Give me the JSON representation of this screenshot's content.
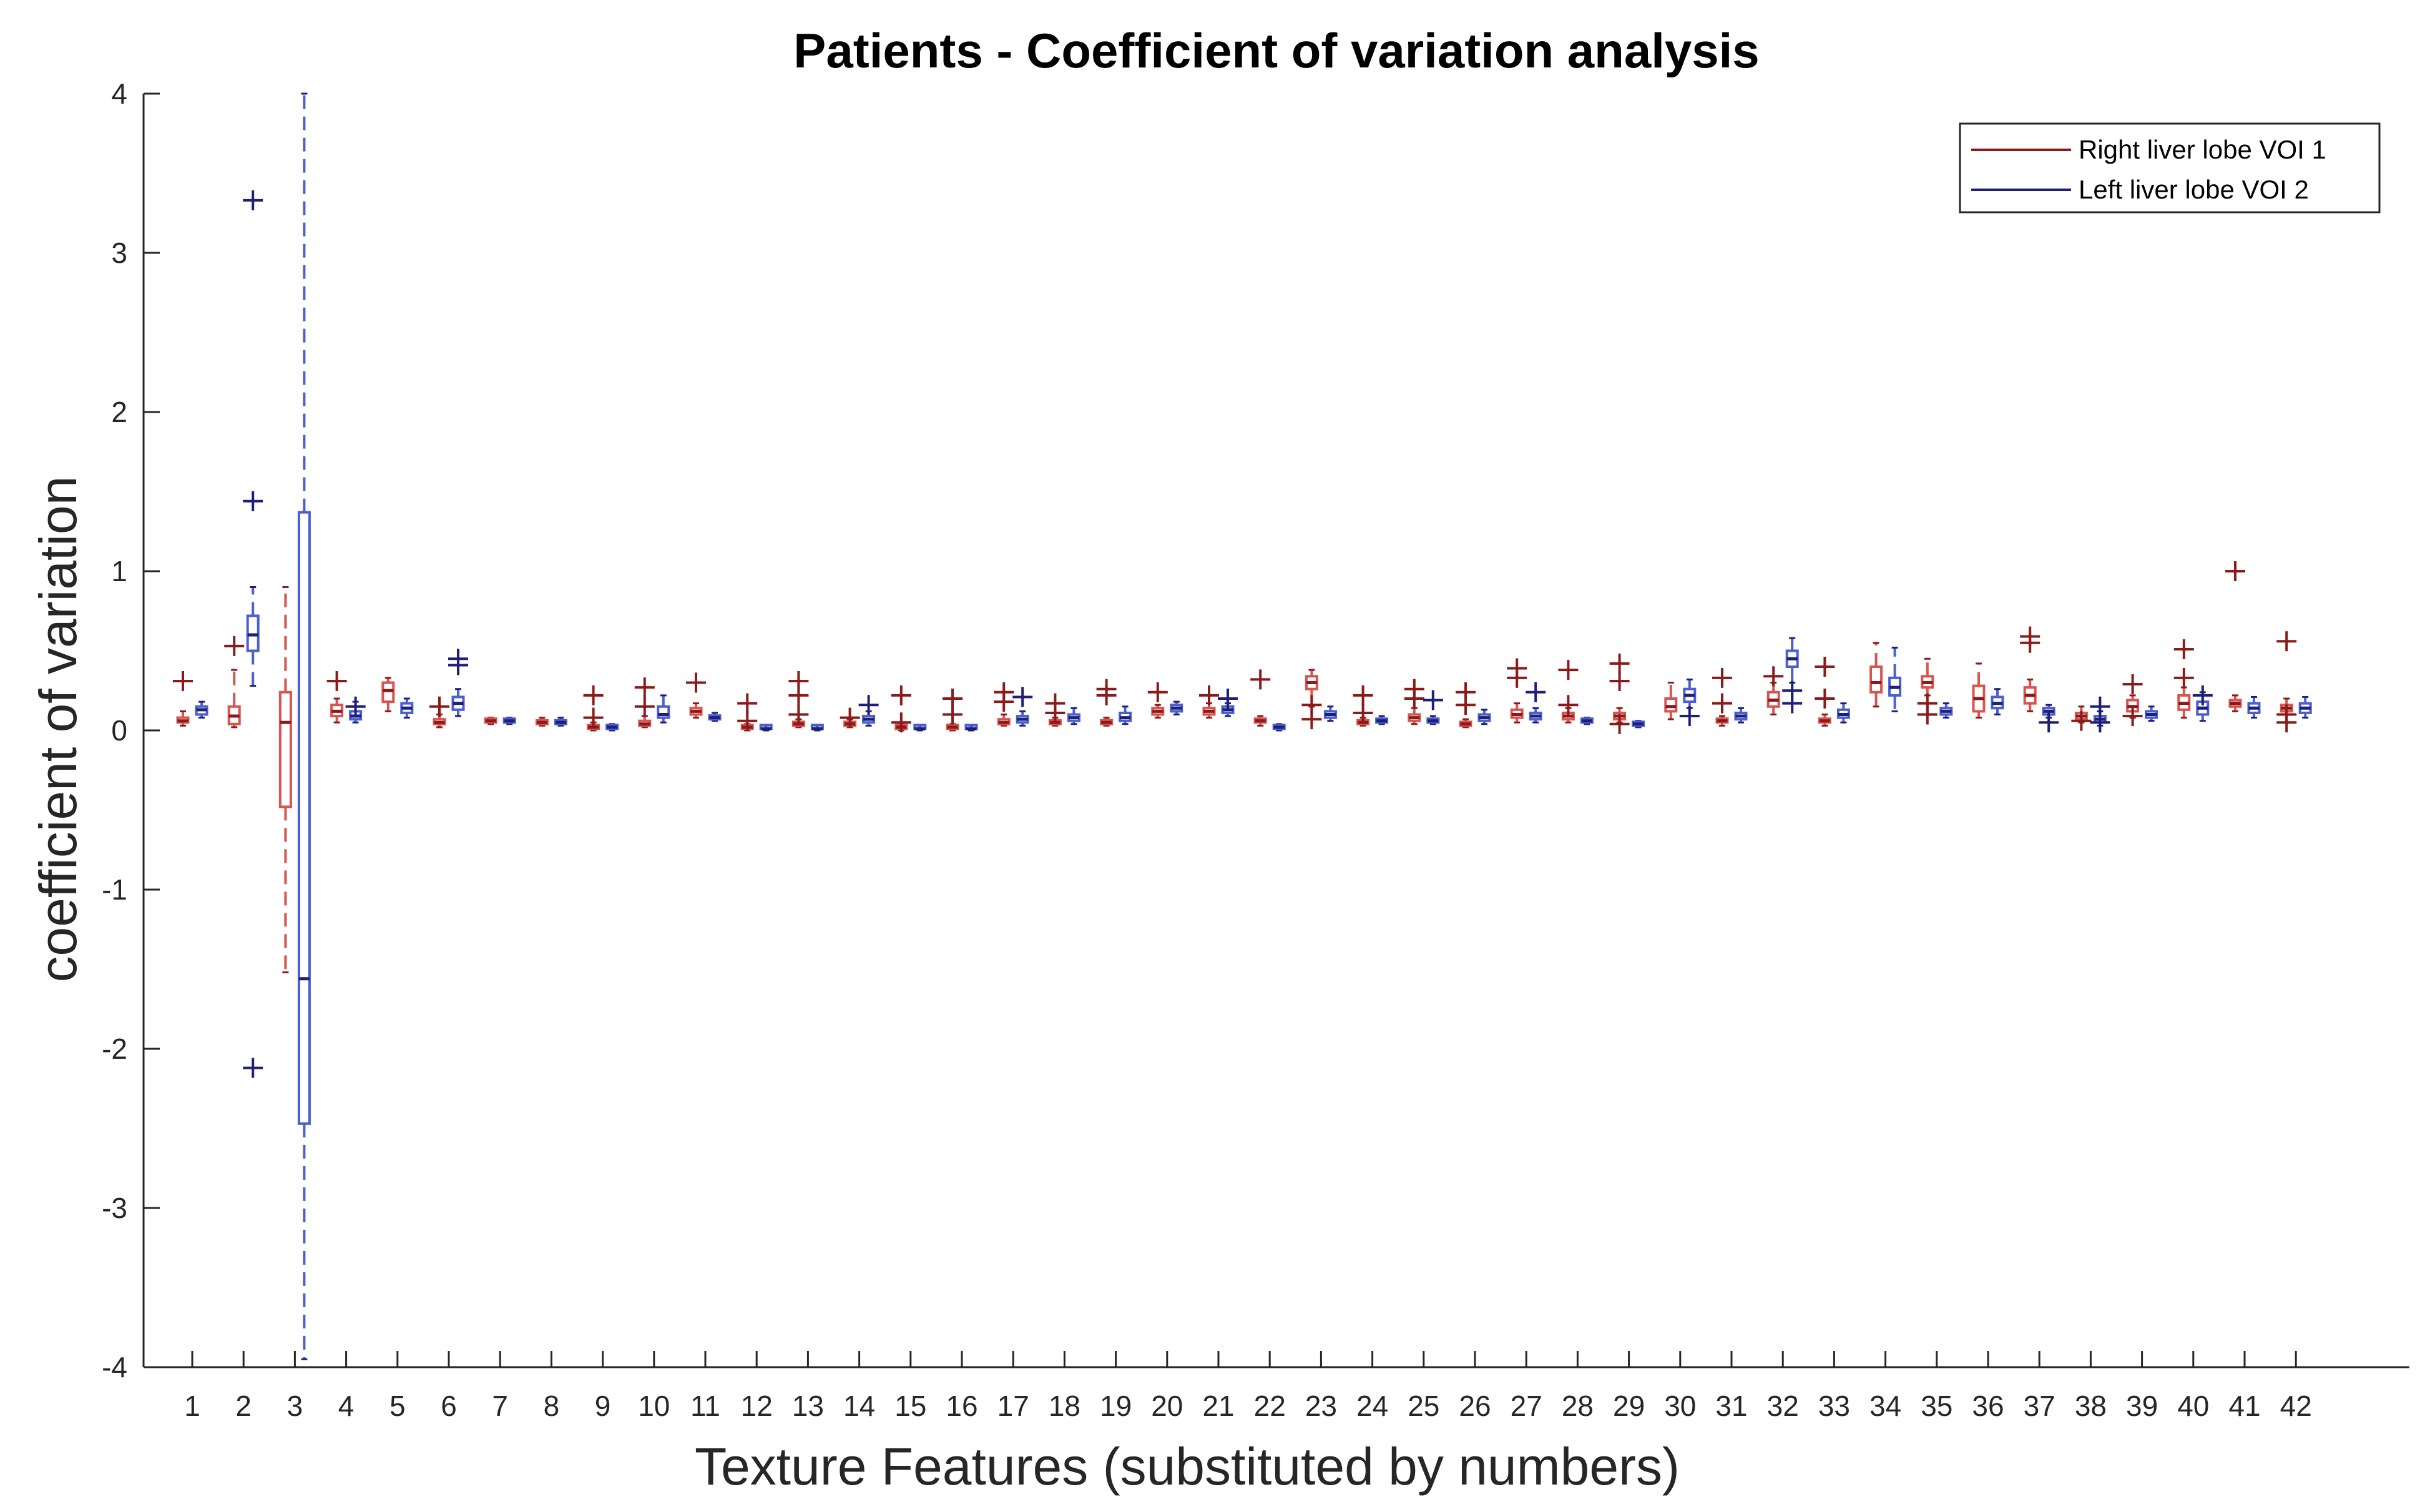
{
  "chart_data": {
    "type": "box",
    "title": "Patients - Coefficient of variation analysis",
    "xlabel": "Texture Features (substituted by numbers)",
    "ylabel": "coefficient of variation",
    "ylim": [
      -4,
      4
    ],
    "yticks": [
      "-4",
      "-3",
      "-2",
      "-1",
      "0",
      "1",
      "2",
      "3",
      "4"
    ],
    "categories": [
      "1",
      "2",
      "3",
      "4",
      "5",
      "6",
      "7",
      "8",
      "9",
      "10",
      "11",
      "12",
      "13",
      "14",
      "15",
      "16",
      "17",
      "18",
      "19",
      "20",
      "21",
      "22",
      "23",
      "24",
      "25",
      "26",
      "27",
      "28",
      "29",
      "30",
      "31",
      "32",
      "33",
      "34",
      "35",
      "36",
      "37",
      "38",
      "39",
      "40",
      "41",
      "42"
    ],
    "legend": {
      "location": "top-right",
      "entries": [
        "Right liver lobe VOI 1",
        "Left liver lobe VOI 2"
      ]
    },
    "colors": {
      "series1_line": "#8b1a1a",
      "series1_box": "#d9534f",
      "series2_line": "#1f1f7a",
      "series2_box": "#4a5fd0",
      "axis": "#262626"
    },
    "series": [
      {
        "name": "Right liver lobe VOI 1",
        "boxes": [
          {
            "q1": 0.05,
            "med": 0.06,
            "q3": 0.08,
            "wl": 0.03,
            "wh": 0.12,
            "out": [
              0.31
            ]
          },
          {
            "q1": 0.04,
            "med": 0.09,
            "q3": 0.15,
            "wl": 0.02,
            "wh": 0.38,
            "out": [
              0.53
            ]
          },
          {
            "q1": -0.48,
            "med": 0.05,
            "q3": 0.24,
            "wl": -1.52,
            "wh": 0.9,
            "out": []
          },
          {
            "q1": 0.09,
            "med": 0.12,
            "q3": 0.16,
            "wl": 0.05,
            "wh": 0.2,
            "out": [
              0.31
            ]
          },
          {
            "q1": 0.18,
            "med": 0.25,
            "q3": 0.3,
            "wl": 0.12,
            "wh": 0.33,
            "out": []
          },
          {
            "q1": 0.04,
            "med": 0.05,
            "q3": 0.07,
            "wl": 0.02,
            "wh": 0.1,
            "out": [
              0.15
            ]
          },
          {
            "q1": 0.05,
            "med": 0.06,
            "q3": 0.07,
            "wl": 0.04,
            "wh": 0.08,
            "out": []
          },
          {
            "q1": 0.04,
            "med": 0.05,
            "q3": 0.06,
            "wl": 0.03,
            "wh": 0.08,
            "out": []
          },
          {
            "q1": 0.01,
            "med": 0.02,
            "q3": 0.03,
            "wl": 0.0,
            "wh": 0.05,
            "out": [
              0.22,
              0.08
            ]
          },
          {
            "q1": 0.03,
            "med": 0.04,
            "q3": 0.06,
            "wl": 0.02,
            "wh": 0.09,
            "out": [
              0.27,
              0.15
            ]
          },
          {
            "q1": 0.1,
            "med": 0.12,
            "q3": 0.14,
            "wl": 0.08,
            "wh": 0.17,
            "out": [
              0.3
            ]
          },
          {
            "q1": 0.01,
            "med": 0.02,
            "q3": 0.03,
            "wl": 0.0,
            "wh": 0.04,
            "out": [
              0.17,
              0.06
            ]
          },
          {
            "q1": 0.03,
            "med": 0.04,
            "q3": 0.05,
            "wl": 0.02,
            "wh": 0.07,
            "out": [
              0.31,
              0.22,
              0.1
            ]
          },
          {
            "q1": 0.03,
            "med": 0.04,
            "q3": 0.05,
            "wl": 0.02,
            "wh": 0.07,
            "out": [
              0.08
            ]
          },
          {
            "q1": 0.01,
            "med": 0.02,
            "q3": 0.03,
            "wl": 0.0,
            "wh": 0.04,
            "out": [
              0.22,
              0.05
            ]
          },
          {
            "q1": 0.01,
            "med": 0.02,
            "q3": 0.03,
            "wl": 0.0,
            "wh": 0.04,
            "out": [
              0.2,
              0.1
            ]
          },
          {
            "q1": 0.04,
            "med": 0.05,
            "q3": 0.07,
            "wl": 0.03,
            "wh": 0.1,
            "out": [
              0.24,
              0.18
            ]
          },
          {
            "q1": 0.04,
            "med": 0.05,
            "q3": 0.06,
            "wl": 0.03,
            "wh": 0.08,
            "out": [
              0.17,
              0.11
            ]
          },
          {
            "q1": 0.04,
            "med": 0.05,
            "q3": 0.06,
            "wl": 0.03,
            "wh": 0.08,
            "out": [
              0.26,
              0.22
            ]
          },
          {
            "q1": 0.1,
            "med": 0.12,
            "q3": 0.14,
            "wl": 0.08,
            "wh": 0.16,
            "out": [
              0.24
            ]
          },
          {
            "q1": 0.1,
            "med": 0.12,
            "q3": 0.14,
            "wl": 0.08,
            "wh": 0.17,
            "out": [
              0.22
            ]
          },
          {
            "q1": 0.05,
            "med": 0.06,
            "q3": 0.07,
            "wl": 0.03,
            "wh": 0.09,
            "out": [
              0.32
            ]
          },
          {
            "q1": 0.26,
            "med": 0.3,
            "q3": 0.34,
            "wl": 0.15,
            "wh": 0.38,
            "out": [
              0.07,
              0.16
            ]
          },
          {
            "q1": 0.04,
            "med": 0.05,
            "q3": 0.06,
            "wl": 0.03,
            "wh": 0.08,
            "out": [
              0.22,
              0.11
            ]
          },
          {
            "q1": 0.06,
            "med": 0.08,
            "q3": 0.1,
            "wl": 0.04,
            "wh": 0.14,
            "out": [
              0.26,
              0.2
            ]
          },
          {
            "q1": 0.03,
            "med": 0.04,
            "q3": 0.05,
            "wl": 0.02,
            "wh": 0.07,
            "out": [
              0.24,
              0.16
            ]
          },
          {
            "q1": 0.08,
            "med": 0.1,
            "q3": 0.13,
            "wl": 0.05,
            "wh": 0.17,
            "out": [
              0.39,
              0.33
            ]
          },
          {
            "q1": 0.07,
            "med": 0.09,
            "q3": 0.11,
            "wl": 0.05,
            "wh": 0.14,
            "out": [
              0.38,
              0.16
            ]
          },
          {
            "q1": 0.07,
            "med": 0.09,
            "q3": 0.11,
            "wl": 0.05,
            "wh": 0.14,
            "out": [
              0.42,
              0.31,
              0.04
            ]
          },
          {
            "q1": 0.12,
            "med": 0.15,
            "q3": 0.2,
            "wl": 0.07,
            "wh": 0.3,
            "out": []
          },
          {
            "q1": 0.05,
            "med": 0.06,
            "q3": 0.07,
            "wl": 0.03,
            "wh": 0.09,
            "out": [
              0.33,
              0.17
            ]
          },
          {
            "q1": 0.15,
            "med": 0.19,
            "q3": 0.24,
            "wl": 0.1,
            "wh": 0.3,
            "out": [
              0.34
            ]
          },
          {
            "q1": 0.05,
            "med": 0.06,
            "q3": 0.07,
            "wl": 0.03,
            "wh": 0.1,
            "out": [
              0.4,
              0.2
            ]
          },
          {
            "q1": 0.24,
            "med": 0.3,
            "q3": 0.4,
            "wl": 0.15,
            "wh": 0.55,
            "out": []
          },
          {
            "q1": 0.27,
            "med": 0.3,
            "q3": 0.34,
            "wl": 0.22,
            "wh": 0.45,
            "out": [
              0.17,
              0.1
            ]
          },
          {
            "q1": 0.12,
            "med": 0.2,
            "q3": 0.28,
            "wl": 0.08,
            "wh": 0.42,
            "out": []
          },
          {
            "q1": 0.17,
            "med": 0.22,
            "q3": 0.27,
            "wl": 0.12,
            "wh": 0.32,
            "out": [
              0.59,
              0.55
            ]
          },
          {
            "q1": 0.07,
            "med": 0.09,
            "q3": 0.11,
            "wl": 0.05,
            "wh": 0.15,
            "out": [
              0.06
            ]
          },
          {
            "q1": 0.12,
            "med": 0.15,
            "q3": 0.19,
            "wl": 0.08,
            "wh": 0.22,
            "out": [
              0.29,
              0.09
            ]
          },
          {
            "q1": 0.13,
            "med": 0.17,
            "q3": 0.22,
            "wl": 0.08,
            "wh": 0.27,
            "out": [
              0.51,
              0.33
            ]
          },
          {
            "q1": 0.15,
            "med": 0.17,
            "q3": 0.19,
            "wl": 0.12,
            "wh": 0.22,
            "out": [
              1.0
            ]
          },
          {
            "q1": 0.12,
            "med": 0.14,
            "q3": 0.16,
            "wl": 0.1,
            "wh": 0.2,
            "out": [
              0.56,
              0.1,
              0.05
            ]
          }
        ]
      },
      {
        "name": "Left liver lobe VOI 2",
        "boxes": [
          {
            "q1": 0.1,
            "med": 0.13,
            "q3": 0.15,
            "wl": 0.08,
            "wh": 0.18,
            "out": []
          },
          {
            "q1": 0.5,
            "med": 0.6,
            "q3": 0.72,
            "wl": 0.28,
            "wh": 0.9,
            "out": [
              3.33,
              1.44,
              -2.12
            ]
          },
          {
            "q1": -2.47,
            "med": -1.56,
            "q3": 1.37,
            "wl": -3.95,
            "wh": 4.0,
            "out": []
          },
          {
            "q1": 0.07,
            "med": 0.09,
            "q3": 0.12,
            "wl": 0.05,
            "wh": 0.18,
            "out": [
              0.15
            ]
          },
          {
            "q1": 0.11,
            "med": 0.14,
            "q3": 0.17,
            "wl": 0.08,
            "wh": 0.2,
            "out": []
          },
          {
            "q1": 0.13,
            "med": 0.17,
            "q3": 0.21,
            "wl": 0.09,
            "wh": 0.26,
            "out": [
              0.45,
              0.41
            ]
          },
          {
            "q1": 0.05,
            "med": 0.06,
            "q3": 0.07,
            "wl": 0.04,
            "wh": 0.08,
            "out": []
          },
          {
            "q1": 0.04,
            "med": 0.05,
            "q3": 0.06,
            "wl": 0.03,
            "wh": 0.08,
            "out": []
          },
          {
            "q1": 0.01,
            "med": 0.02,
            "q3": 0.03,
            "wl": 0.0,
            "wh": 0.04,
            "out": []
          },
          {
            "q1": 0.08,
            "med": 0.1,
            "q3": 0.15,
            "wl": 0.05,
            "wh": 0.22,
            "out": []
          },
          {
            "q1": 0.07,
            "med": 0.08,
            "q3": 0.09,
            "wl": 0.06,
            "wh": 0.11,
            "out": []
          },
          {
            "q1": 0.01,
            "med": 0.01,
            "q3": 0.02,
            "wl": 0.0,
            "wh": 0.03,
            "out": []
          },
          {
            "q1": 0.01,
            "med": 0.01,
            "q3": 0.02,
            "wl": 0.0,
            "wh": 0.03,
            "out": []
          },
          {
            "q1": 0.05,
            "med": 0.07,
            "q3": 0.09,
            "wl": 0.03,
            "wh": 0.12,
            "out": [
              0.16
            ]
          },
          {
            "q1": 0.01,
            "med": 0.01,
            "q3": 0.02,
            "wl": 0.0,
            "wh": 0.03,
            "out": []
          },
          {
            "q1": 0.01,
            "med": 0.01,
            "q3": 0.02,
            "wl": 0.0,
            "wh": 0.03,
            "out": []
          },
          {
            "q1": 0.05,
            "med": 0.07,
            "q3": 0.09,
            "wl": 0.03,
            "wh": 0.12,
            "out": [
              0.21
            ]
          },
          {
            "q1": 0.06,
            "med": 0.08,
            "q3": 0.1,
            "wl": 0.04,
            "wh": 0.14,
            "out": []
          },
          {
            "q1": 0.06,
            "med": 0.08,
            "q3": 0.11,
            "wl": 0.04,
            "wh": 0.15,
            "out": []
          },
          {
            "q1": 0.12,
            "med": 0.14,
            "q3": 0.16,
            "wl": 0.1,
            "wh": 0.18,
            "out": []
          },
          {
            "q1": 0.11,
            "med": 0.13,
            "q3": 0.15,
            "wl": 0.09,
            "wh": 0.17,
            "out": [
              0.2
            ]
          },
          {
            "q1": 0.01,
            "med": 0.02,
            "q3": 0.03,
            "wl": 0.0,
            "wh": 0.04,
            "out": []
          },
          {
            "q1": 0.08,
            "med": 0.1,
            "q3": 0.12,
            "wl": 0.06,
            "wh": 0.15,
            "out": []
          },
          {
            "q1": 0.05,
            "med": 0.06,
            "q3": 0.07,
            "wl": 0.04,
            "wh": 0.09,
            "out": []
          },
          {
            "q1": 0.05,
            "med": 0.06,
            "q3": 0.07,
            "wl": 0.04,
            "wh": 0.09,
            "out": [
              0.19
            ]
          },
          {
            "q1": 0.06,
            "med": 0.08,
            "q3": 0.1,
            "wl": 0.04,
            "wh": 0.13,
            "out": []
          },
          {
            "q1": 0.07,
            "med": 0.09,
            "q3": 0.11,
            "wl": 0.05,
            "wh": 0.14,
            "out": [
              0.24
            ]
          },
          {
            "q1": 0.05,
            "med": 0.06,
            "q3": 0.07,
            "wl": 0.04,
            "wh": 0.08,
            "out": []
          },
          {
            "q1": 0.03,
            "med": 0.04,
            "q3": 0.05,
            "wl": 0.02,
            "wh": 0.06,
            "out": []
          },
          {
            "q1": 0.18,
            "med": 0.22,
            "q3": 0.26,
            "wl": 0.14,
            "wh": 0.32,
            "out": [
              0.09
            ]
          },
          {
            "q1": 0.07,
            "med": 0.09,
            "q3": 0.11,
            "wl": 0.05,
            "wh": 0.14,
            "out": []
          },
          {
            "q1": 0.4,
            "med": 0.45,
            "q3": 0.5,
            "wl": 0.3,
            "wh": 0.58,
            "out": [
              0.25,
              0.17
            ]
          },
          {
            "q1": 0.08,
            "med": 0.1,
            "q3": 0.13,
            "wl": 0.05,
            "wh": 0.17,
            "out": []
          },
          {
            "q1": 0.22,
            "med": 0.27,
            "q3": 0.33,
            "wl": 0.12,
            "wh": 0.52,
            "out": []
          },
          {
            "q1": 0.1,
            "med": 0.12,
            "q3": 0.14,
            "wl": 0.08,
            "wh": 0.17,
            "out": []
          },
          {
            "q1": 0.14,
            "med": 0.17,
            "q3": 0.21,
            "wl": 0.1,
            "wh": 0.26,
            "out": []
          },
          {
            "q1": 0.1,
            "med": 0.12,
            "q3": 0.14,
            "wl": 0.08,
            "wh": 0.16,
            "out": [
              0.05
            ]
          },
          {
            "q1": 0.05,
            "med": 0.07,
            "q3": 0.09,
            "wl": 0.03,
            "wh": 0.12,
            "out": [
              0.15,
              0.05
            ]
          },
          {
            "q1": 0.08,
            "med": 0.1,
            "q3": 0.12,
            "wl": 0.06,
            "wh": 0.15,
            "out": []
          },
          {
            "q1": 0.1,
            "med": 0.14,
            "q3": 0.18,
            "wl": 0.06,
            "wh": 0.24,
            "out": [
              0.22
            ]
          },
          {
            "q1": 0.11,
            "med": 0.14,
            "q3": 0.17,
            "wl": 0.08,
            "wh": 0.21,
            "out": []
          },
          {
            "q1": 0.11,
            "med": 0.14,
            "q3": 0.17,
            "wl": 0.08,
            "wh": 0.21,
            "out": []
          }
        ]
      }
    ]
  }
}
